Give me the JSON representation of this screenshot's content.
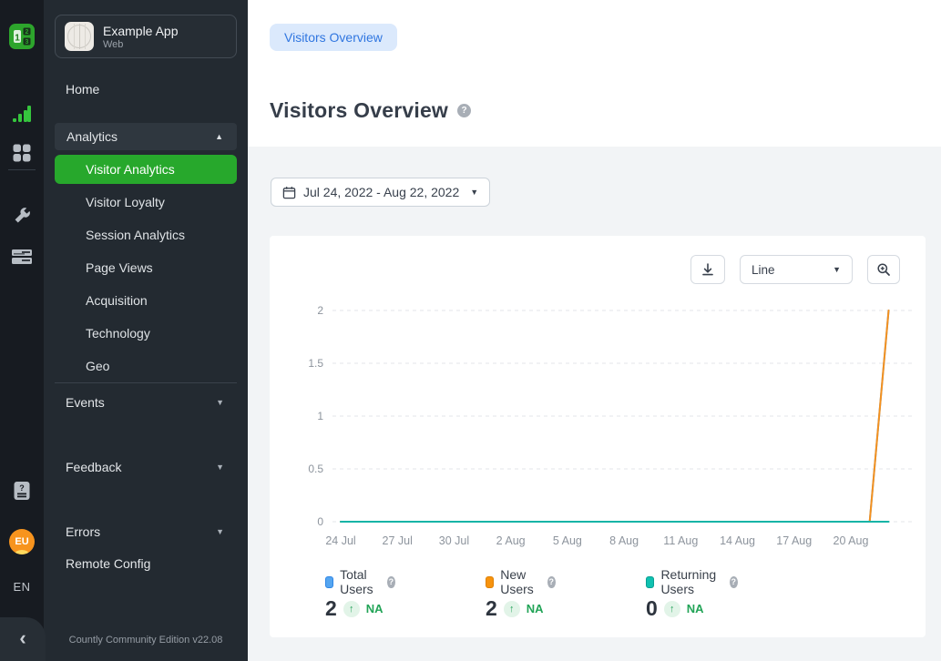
{
  "icons": {
    "help": "?",
    "caret_up": "▲",
    "caret_down": "▼",
    "chevron_left": "‹",
    "arrow_up": "↑"
  },
  "rail": {
    "region_badge": "EU",
    "language": "EN"
  },
  "sidebar": {
    "app_name": "Example App",
    "app_type": "Web",
    "home_label": "Home",
    "analytics_label": "Analytics",
    "analytics_items": [
      {
        "label": "Visitor Analytics",
        "active": true
      },
      {
        "label": "Visitor Loyalty",
        "active": false
      },
      {
        "label": "Session Analytics",
        "active": false
      },
      {
        "label": "Page Views",
        "active": false
      },
      {
        "label": "Acquisition",
        "active": false
      },
      {
        "label": "Technology",
        "active": false
      },
      {
        "label": "Geo",
        "active": false
      }
    ],
    "groups": [
      "Events",
      "Feedback",
      "Errors"
    ],
    "remote_config_label": "Remote Config",
    "footer": "Countly Community Edition v22.08"
  },
  "header": {
    "breadcrumb": "Visitors Overview",
    "title": "Visitors Overview"
  },
  "filters": {
    "date_range": "Jul 24, 2022 - Aug 22, 2022"
  },
  "toolbar": {
    "chart_type": "Line"
  },
  "chart_data": {
    "type": "line",
    "x": [
      "24 Jul",
      "25 Jul",
      "26 Jul",
      "27 Jul",
      "28 Jul",
      "29 Jul",
      "30 Jul",
      "31 Jul",
      "1 Aug",
      "2 Aug",
      "3 Aug",
      "4 Aug",
      "5 Aug",
      "6 Aug",
      "7 Aug",
      "8 Aug",
      "9 Aug",
      "10 Aug",
      "11 Aug",
      "12 Aug",
      "13 Aug",
      "14 Aug",
      "15 Aug",
      "16 Aug",
      "17 Aug",
      "18 Aug",
      "19 Aug",
      "20 Aug",
      "21 Aug",
      "22 Aug"
    ],
    "x_tick_every": 3,
    "x_tick_labels": [
      "24 Jul",
      "27 Jul",
      "30 Jul",
      "2 Aug",
      "5 Aug",
      "8 Aug",
      "11 Aug",
      "14 Aug",
      "17 Aug",
      "20 Aug"
    ],
    "ylim": [
      0,
      2
    ],
    "yticks": [
      0,
      0.5,
      1,
      1.5,
      2
    ],
    "grid": "horizontal-dashed",
    "legend_position": "bottom",
    "series": [
      {
        "name": "Total Users",
        "color": "#4a9ced",
        "values": [
          0,
          0,
          0,
          0,
          0,
          0,
          0,
          0,
          0,
          0,
          0,
          0,
          0,
          0,
          0,
          0,
          0,
          0,
          0,
          0,
          0,
          0,
          0,
          0,
          0,
          0,
          0,
          0,
          0,
          2
        ]
      },
      {
        "name": "New Users",
        "color": "#f5911e",
        "values": [
          0,
          0,
          0,
          0,
          0,
          0,
          0,
          0,
          0,
          0,
          0,
          0,
          0,
          0,
          0,
          0,
          0,
          0,
          0,
          0,
          0,
          0,
          0,
          0,
          0,
          0,
          0,
          0,
          0,
          2
        ]
      },
      {
        "name": "Returning Users",
        "color": "#14b4a6",
        "values": [
          0,
          0,
          0,
          0,
          0,
          0,
          0,
          0,
          0,
          0,
          0,
          0,
          0,
          0,
          0,
          0,
          0,
          0,
          0,
          0,
          0,
          0,
          0,
          0,
          0,
          0,
          0,
          0,
          0,
          0
        ]
      }
    ]
  },
  "legend": {
    "items": [
      {
        "label": "Total Users",
        "value": "2",
        "trend": "NA",
        "fill": "#55a5f0",
        "border": "#2e86e6"
      },
      {
        "label": "New Users",
        "value": "2",
        "trend": "NA",
        "fill": "#f7930d",
        "border": "#de8005"
      },
      {
        "label": "Returning Users",
        "value": "0",
        "trend": "NA",
        "fill": "#10c1b0",
        "border": "#0a9f93"
      }
    ]
  }
}
